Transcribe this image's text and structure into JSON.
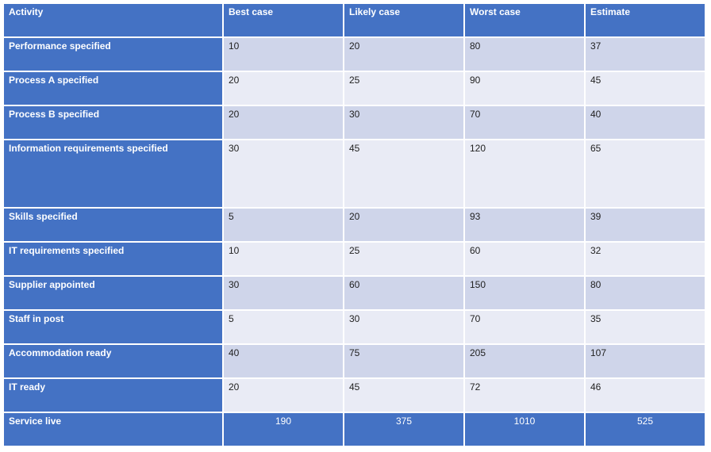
{
  "headers": [
    "Activity",
    "Best case",
    "Likely case",
    "Worst case",
    "Estimate"
  ],
  "rows": [
    {
      "activity": "Performance specified",
      "best": "10",
      "likely": "20",
      "worst": "80",
      "estimate": "37"
    },
    {
      "activity": "Process A specified",
      "best": "20",
      "likely": "25",
      "worst": "90",
      "estimate": "45"
    },
    {
      "activity": "Process B specified",
      "best": "20",
      "likely": "30",
      "worst": "70",
      "estimate": "40"
    },
    {
      "activity": "Information requirements specified",
      "best": "30",
      "likely": "45",
      "worst": "120",
      "estimate": "65"
    },
    {
      "activity": "Skills specified",
      "best": "5",
      "likely": "20",
      "worst": "93",
      "estimate": "39"
    },
    {
      "activity": "IT requirements specified",
      "best": "10",
      "likely": "25",
      "worst": "60",
      "estimate": "32"
    },
    {
      "activity": "Supplier appointed",
      "best": "30",
      "likely": "60",
      "worst": "150",
      "estimate": "80"
    },
    {
      "activity": "Staff in post",
      "best": "5",
      "likely": "30",
      "worst": "70",
      "estimate": "35"
    },
    {
      "activity": "Accommodation ready",
      "best": "40",
      "likely": "75",
      "worst": "205",
      "estimate": "107"
    },
    {
      "activity": "IT ready",
      "best": "20",
      "likely": "45",
      "worst": "72",
      "estimate": "46"
    }
  ],
  "total": {
    "activity": "Service live",
    "best": "190",
    "likely": "375",
    "worst": "1010",
    "estimate": "525"
  }
}
